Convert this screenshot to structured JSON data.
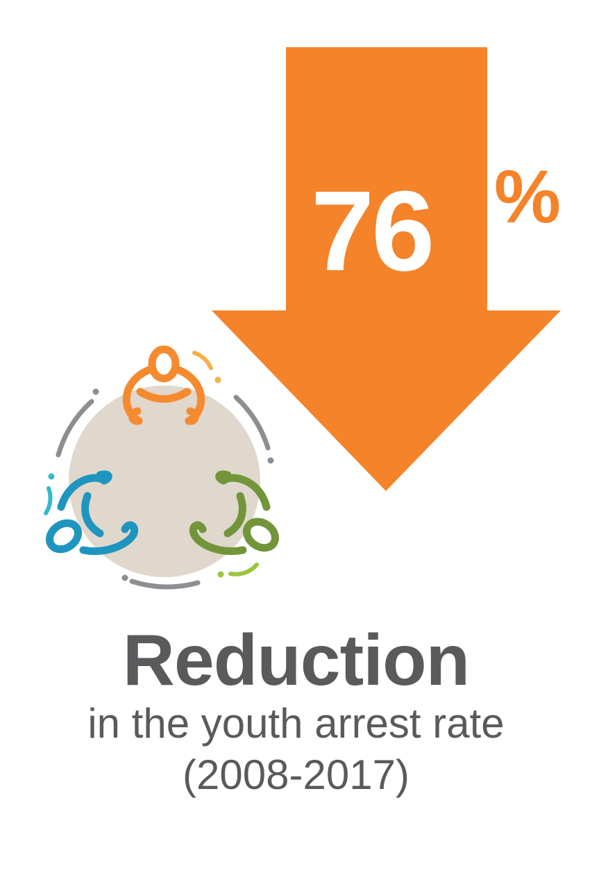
{
  "stat": {
    "value": "76",
    "unit": "%"
  },
  "heading": "Reduction",
  "subtext": "in the youth arrest rate",
  "period": "(2008-2017)",
  "icons": {
    "arrow": "down-arrow-icon",
    "group": "people-around-table-icon"
  },
  "colors": {
    "accent": "#f5832a",
    "text": "#595a5c",
    "table": "#e0d7cd",
    "person_orange": "#f58a2e",
    "person_blue": "#1e95bf",
    "person_green": "#73953a",
    "ring_gray": "#8d8e92",
    "accent_teal": "#33b9c9",
    "accent_lime": "#9bc53d",
    "accent_yellow": "#f7b046"
  }
}
